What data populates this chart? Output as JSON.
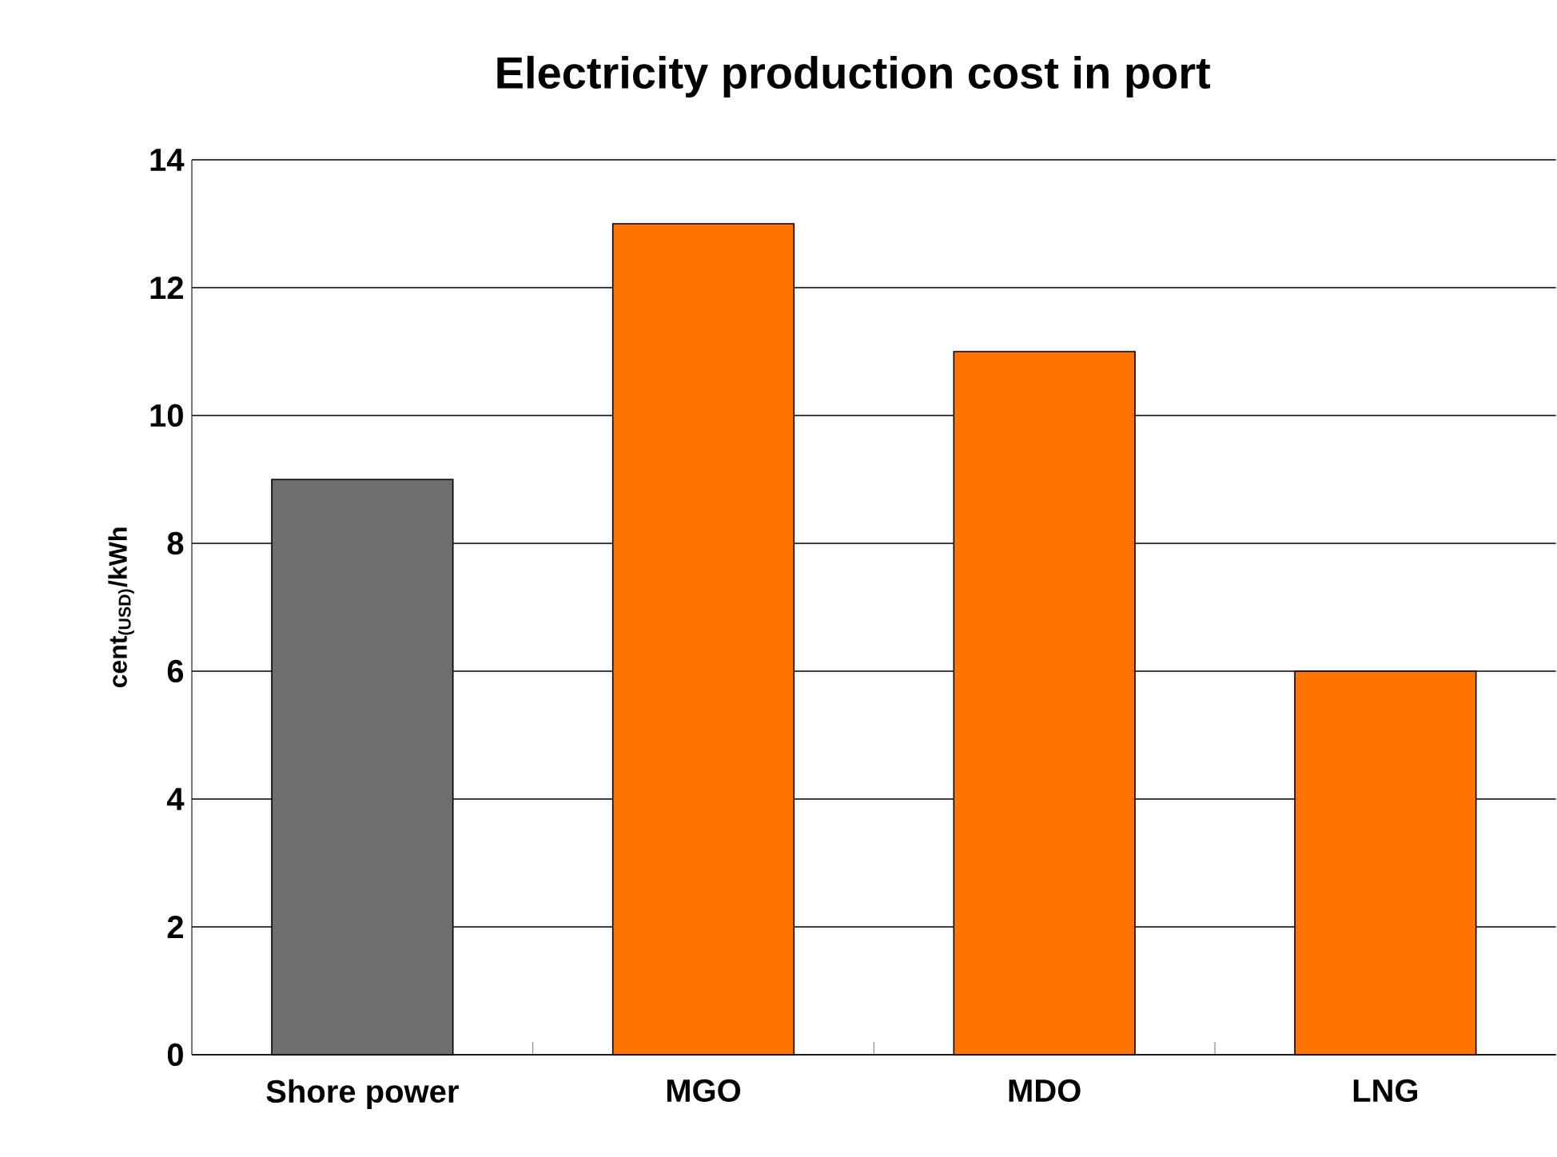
{
  "chart_data": {
    "type": "bar",
    "title": "Electricity production cost in port",
    "ylabel": "cent$_{(USD)}$/kWh",
    "categories": [
      "Shore power",
      "MGO",
      "MDO",
      "LNG"
    ],
    "values": [
      9,
      13,
      11,
      6
    ],
    "colors": [
      "#6e6e6e",
      "#ff7300",
      "#ff7300",
      "#ff7300"
    ],
    "ylim": [
      0,
      14
    ],
    "yticks": [
      0,
      2,
      4,
      6,
      8,
      10,
      12,
      14
    ],
    "grid": "y"
  }
}
